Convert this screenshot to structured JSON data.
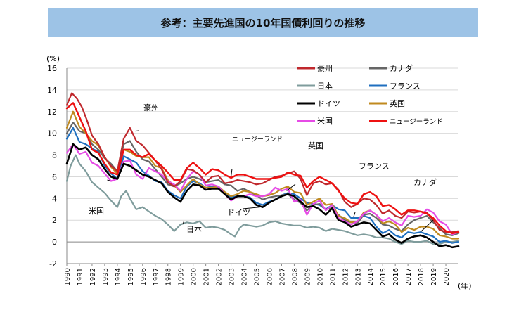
{
  "title": "参考：主要先進国の10年国債利回りの推移",
  "chart_data": {
    "type": "line",
    "title": "参考：主要先進国の10年国債利回りの推移",
    "ylabel": "(%)",
    "xlabel": "(年)",
    "ylim": [
      -2,
      16
    ],
    "xlim": [
      1990,
      2021.0
    ],
    "yticks": [
      "16",
      "14",
      "12",
      "10",
      "8",
      "6",
      "4",
      "2",
      "0",
      "-2"
    ],
    "xticks": [
      "1990",
      "1991",
      "1992",
      "1993",
      "1994",
      "1995",
      "1996",
      "1997",
      "1998",
      "1999",
      "2000",
      "2001",
      "2002",
      "2003",
      "2004",
      "2005",
      "2006",
      "2007",
      "2008",
      "2009",
      "2010",
      "2011",
      "2012",
      "2013",
      "2014",
      "2015",
      "2016",
      "2017",
      "2018",
      "2019",
      "2020"
    ],
    "grid": "horizontal",
    "legend_position": "top-right",
    "series": [
      {
        "name": "豪州",
        "color": "#c0282d",
        "width": 2.2,
        "x": [
          1990,
          1990.4,
          1990.8,
          1991.2,
          1991.6,
          1992,
          1992.5,
          1993,
          1993.5,
          1994,
          1994.5,
          1995,
          1995.5,
          1996,
          1996.5,
          1997,
          1997.5,
          1998,
          1998.5,
          1999,
          1999.5,
          2000,
          2000.5,
          2001,
          2001.5,
          2002,
          2002.5,
          2003,
          2003.5,
          2004,
          2004.5,
          2005,
          2005.5,
          2006,
          2006.5,
          2007,
          2007.5,
          2008,
          2008.5,
          2009,
          2009.5,
          2010,
          2010.5,
          2011,
          2011.5,
          2012,
          2012.5,
          2013,
          2013.5,
          2014,
          2014.5,
          2015,
          2015.5,
          2016,
          2016.5,
          2017,
          2017.5,
          2018,
          2018.5,
          2019,
          2019.5,
          2020,
          2020.5,
          2021
        ],
        "y": [
          12.6,
          13.7,
          13.2,
          12.4,
          11.2,
          9.8,
          9.0,
          7.8,
          7.0,
          6.5,
          9.5,
          10.5,
          9.3,
          8.9,
          8.2,
          7.5,
          6.7,
          5.5,
          5.1,
          5.6,
          6.7,
          6.6,
          6.2,
          5.5,
          6.0,
          6.1,
          5.4,
          5.5,
          5.7,
          5.6,
          5.5,
          5.3,
          5.4,
          5.7,
          6.0,
          6.1,
          6.3,
          6.5,
          5.8,
          4.3,
          5.4,
          5.6,
          5.3,
          5.4,
          4.8,
          3.7,
          3.2,
          3.5,
          4.0,
          3.9,
          3.4,
          2.6,
          2.9,
          2.4,
          2.2,
          2.8,
          2.7,
          2.8,
          2.7,
          2.0,
          1.1,
          0.9,
          0.9,
          1.0
        ]
      },
      {
        "name": "カナダ",
        "color": "#666666",
        "width": 2.2,
        "x": [
          1990,
          1990.5,
          1991,
          1991.5,
          1992,
          1992.5,
          1993,
          1993.5,
          1994,
          1994.5,
          1995,
          1995.5,
          1996,
          1996.5,
          1997,
          1997.5,
          1998,
          1998.5,
          1999,
          1999.5,
          2000,
          2000.5,
          2001,
          2001.5,
          2002,
          2002.5,
          2003,
          2003.5,
          2004,
          2004.5,
          2005,
          2005.5,
          2006,
          2006.5,
          2007,
          2007.5,
          2008,
          2008.5,
          2009,
          2009.5,
          2010,
          2010.5,
          2011,
          2011.5,
          2012,
          2012.5,
          2013,
          2013.5,
          2014,
          2014.5,
          2015,
          2015.5,
          2016,
          2016.5,
          2017,
          2017.5,
          2018,
          2018.5,
          2019,
          2019.5,
          2020,
          2020.5,
          2021
        ],
        "y": [
          10.0,
          11.0,
          10.2,
          10.0,
          9.0,
          8.5,
          7.7,
          7.2,
          6.5,
          9.0,
          9.3,
          8.3,
          7.6,
          7.4,
          6.7,
          6.0,
          5.3,
          5.1,
          5.4,
          5.8,
          6.0,
          5.8,
          5.5,
          5.6,
          5.7,
          5.3,
          5.2,
          4.7,
          4.9,
          4.6,
          4.3,
          3.9,
          4.1,
          4.2,
          4.3,
          4.4,
          3.9,
          3.6,
          2.9,
          3.4,
          3.5,
          3.0,
          3.1,
          2.5,
          2.0,
          1.8,
          1.7,
          2.5,
          2.6,
          2.2,
          1.6,
          1.5,
          1.2,
          1.0,
          1.6,
          2.0,
          2.2,
          2.4,
          1.8,
          1.3,
          0.7,
          0.6,
          0.8
        ]
      },
      {
        "name": "日本",
        "color": "#7f9c9c",
        "width": 2.2,
        "x": [
          1990,
          1990.3,
          1990.7,
          1991,
          1991.5,
          1992,
          1992.5,
          1993,
          1993.5,
          1994,
          1994.3,
          1994.7,
          1995,
          1995.5,
          1996,
          1996.5,
          1997,
          1997.5,
          1998,
          1998.5,
          1999,
          1999.5,
          2000,
          2000.5,
          2001,
          2001.5,
          2002,
          2002.5,
          2003,
          2003.3,
          2003.7,
          2004,
          2004.5,
          2005,
          2005.5,
          2006,
          2006.5,
          2007,
          2007.5,
          2008,
          2008.5,
          2009,
          2009.5,
          2010,
          2010.5,
          2011,
          2011.5,
          2012,
          2012.5,
          2013,
          2013.5,
          2014,
          2014.5,
          2015,
          2015.5,
          2016,
          2016.5,
          2017,
          2017.5,
          2018,
          2018.5,
          2019,
          2019.5,
          2020,
          2020.5,
          2021
        ],
        "y": [
          5.6,
          7.0,
          8.0,
          7.2,
          6.5,
          5.5,
          5.0,
          4.5,
          3.8,
          3.2,
          4.2,
          4.7,
          4.0,
          3.0,
          3.2,
          2.8,
          2.4,
          2.1,
          1.6,
          1.0,
          1.6,
          1.8,
          1.7,
          1.9,
          1.3,
          1.4,
          1.3,
          1.1,
          0.7,
          0.5,
          1.3,
          1.6,
          1.5,
          1.4,
          1.5,
          1.8,
          1.9,
          1.7,
          1.6,
          1.5,
          1.5,
          1.3,
          1.4,
          1.3,
          1.0,
          1.2,
          1.1,
          1.0,
          0.8,
          0.6,
          0.7,
          0.6,
          0.4,
          0.4,
          0.3,
          0.0,
          -0.2,
          0.1,
          0.0,
          0.0,
          0.1,
          -0.2,
          -0.2,
          0.0,
          0.0,
          0.1
        ]
      },
      {
        "name": "フランス",
        "color": "#1f6fbf",
        "width": 2.2,
        "x": [
          1990,
          1990.5,
          1991,
          1991.5,
          1992,
          1992.5,
          1993,
          1993.5,
          1994,
          1994.5,
          1995,
          1995.5,
          1996,
          1996.5,
          1997,
          1997.5,
          1998,
          1998.5,
          1999,
          1999.5,
          2000,
          2000.5,
          2001,
          2001.5,
          2002,
          2002.5,
          2003,
          2003.5,
          2004,
          2004.5,
          2005,
          2005.5,
          2006,
          2006.5,
          2007,
          2007.5,
          2008,
          2008.5,
          2009,
          2009.5,
          2010,
          2010.5,
          2011,
          2011.5,
          2012,
          2012.5,
          2013,
          2013.5,
          2014,
          2014.5,
          2015,
          2015.5,
          2016,
          2016.5,
          2017,
          2017.5,
          2018,
          2018.5,
          2019,
          2019.5,
          2020,
          2020.5,
          2021
        ],
        "y": [
          9.5,
          10.5,
          9.2,
          9.0,
          8.6,
          8.3,
          7.0,
          6.3,
          5.8,
          7.9,
          7.6,
          7.3,
          6.5,
          6.1,
          5.6,
          5.5,
          4.7,
          4.3,
          4.0,
          5.1,
          5.6,
          5.4,
          5.0,
          5.1,
          5.0,
          4.6,
          4.1,
          4.2,
          4.2,
          4.1,
          3.6,
          3.4,
          3.7,
          3.9,
          4.3,
          4.5,
          4.4,
          4.0,
          3.6,
          3.5,
          3.4,
          3.0,
          3.4,
          3.0,
          2.9,
          2.2,
          2.2,
          2.4,
          2.2,
          1.4,
          0.8,
          1.1,
          0.6,
          0.4,
          0.9,
          0.8,
          0.9,
          0.7,
          0.5,
          0.0,
          0.1,
          -0.1,
          0.0
        ]
      },
      {
        "name": "ドイツ",
        "color": "#000000",
        "width": 2.6,
        "x": [
          1990,
          1990.5,
          1991,
          1991.5,
          1992,
          1992.5,
          1993,
          1993.5,
          1994,
          1994.5,
          1995,
          1995.5,
          1996,
          1996.5,
          1997,
          1997.5,
          1998,
          1998.5,
          1999,
          1999.5,
          2000,
          2000.5,
          2001,
          2001.5,
          2002,
          2002.5,
          2003,
          2003.5,
          2004,
          2004.5,
          2005,
          2005.5,
          2006,
          2006.5,
          2007,
          2007.5,
          2008,
          2008.5,
          2009,
          2009.5,
          2010,
          2010.5,
          2011,
          2011.5,
          2012,
          2012.5,
          2013,
          2013.5,
          2014,
          2014.5,
          2015,
          2015.5,
          2016,
          2016.5,
          2017,
          2017.5,
          2018,
          2018.5,
          2019,
          2019.5,
          2020,
          2020.5,
          2021
        ],
        "y": [
          7.2,
          9.0,
          8.5,
          8.7,
          8.0,
          7.6,
          6.7,
          6.0,
          5.8,
          7.2,
          7.0,
          6.6,
          6.2,
          6.0,
          5.7,
          5.4,
          4.6,
          4.1,
          3.7,
          4.7,
          5.3,
          5.2,
          4.8,
          4.9,
          4.9,
          4.4,
          3.9,
          4.2,
          4.2,
          4.0,
          3.4,
          3.2,
          3.6,
          3.9,
          4.2,
          4.4,
          4.2,
          3.7,
          3.2,
          3.3,
          3.0,
          2.5,
          3.1,
          2.0,
          1.8,
          1.4,
          1.6,
          1.8,
          1.7,
          1.1,
          0.5,
          0.7,
          0.2,
          -0.1,
          0.3,
          0.5,
          0.6,
          0.4,
          0.0,
          -0.4,
          -0.3,
          -0.5,
          -0.4
        ]
      },
      {
        "name": "英国",
        "color": "#c08a1f",
        "width": 2.2,
        "x": [
          1990,
          1990.5,
          1991,
          1991.5,
          1992,
          1992.5,
          1993,
          1993.5,
          1994,
          1994.5,
          1995,
          1995.5,
          1996,
          1996.5,
          1997,
          1997.5,
          1998,
          1998.5,
          1999,
          1999.5,
          2000,
          2000.5,
          2001,
          2001.5,
          2002,
          2002.5,
          2003,
          2003.5,
          2004,
          2004.5,
          2005,
          2005.5,
          2006,
          2006.5,
          2007,
          2007.5,
          2008,
          2008.5,
          2009,
          2009.5,
          2010,
          2010.5,
          2011,
          2011.5,
          2012,
          2012.5,
          2013,
          2013.5,
          2014,
          2014.5,
          2015,
          2015.5,
          2016,
          2016.5,
          2017,
          2017.5,
          2018,
          2018.5,
          2019,
          2019.5,
          2020,
          2020.5,
          2021
        ],
        "y": [
          10.5,
          12.0,
          10.6,
          10.0,
          9.3,
          8.9,
          7.8,
          6.9,
          6.3,
          8.5,
          8.3,
          7.9,
          7.8,
          7.8,
          7.0,
          6.8,
          5.7,
          5.2,
          4.6,
          5.2,
          5.8,
          5.3,
          5.0,
          5.0,
          5.1,
          4.6,
          4.2,
          4.4,
          4.7,
          4.6,
          4.4,
          4.2,
          4.3,
          4.5,
          4.9,
          5.1,
          4.6,
          4.5,
          3.4,
          3.7,
          4.0,
          3.4,
          3.5,
          2.4,
          2.2,
          1.8,
          1.9,
          2.7,
          2.9,
          2.5,
          1.7,
          1.9,
          1.6,
          0.9,
          1.3,
          1.1,
          1.4,
          1.4,
          1.2,
          0.6,
          0.5,
          0.3,
          0.3
        ]
      },
      {
        "name": "米国",
        "color": "#e64be6",
        "width": 2.2,
        "x": [
          1990,
          1990.5,
          1991,
          1991.5,
          1992,
          1992.5,
          1993,
          1993.5,
          1994,
          1994.5,
          1995,
          1995.5,
          1996,
          1996.5,
          1997,
          1997.5,
          1998,
          1998.5,
          1999,
          1999.5,
          2000,
          2000.5,
          2001,
          2001.5,
          2002,
          2002.5,
          2003,
          2003.5,
          2004,
          2004.5,
          2005,
          2005.5,
          2006,
          2006.5,
          2007,
          2007.5,
          2008,
          2008.5,
          2009,
          2009.5,
          2010,
          2010.5,
          2011,
          2011.5,
          2012,
          2012.5,
          2013,
          2013.5,
          2014,
          2014.5,
          2015,
          2015.5,
          2016,
          2016.5,
          2017,
          2017.5,
          2018,
          2018.5,
          2019,
          2019.5,
          2020,
          2020.5,
          2021
        ],
        "y": [
          8.2,
          9.0,
          8.1,
          8.3,
          7.3,
          7.0,
          6.3,
          5.6,
          5.8,
          7.4,
          7.5,
          6.2,
          5.8,
          6.8,
          6.5,
          6.2,
          5.6,
          5.3,
          4.7,
          5.8,
          6.5,
          6.2,
          5.2,
          5.3,
          5.1,
          4.4,
          3.8,
          4.2,
          4.2,
          4.4,
          4.2,
          4.2,
          4.4,
          5.0,
          4.7,
          4.9,
          3.7,
          3.9,
          2.5,
          3.5,
          3.8,
          2.9,
          3.4,
          2.2,
          1.9,
          1.6,
          1.9,
          2.6,
          2.9,
          2.5,
          1.9,
          2.2,
          1.8,
          1.5,
          2.4,
          2.3,
          2.4,
          3.0,
          2.7,
          1.9,
          1.6,
          0.7,
          0.9
        ]
      },
      {
        "name": "ニュージーランド",
        "color": "#ee1111",
        "width": 2.4,
        "x": [
          1990,
          1990.5,
          1991,
          1991.5,
          1992,
          1992.5,
          1993,
          1993.5,
          1994,
          1994.5,
          1995,
          1995.5,
          1996,
          1996.5,
          1997,
          1997.5,
          1998,
          1998.5,
          1999,
          1999.5,
          2000,
          2000.5,
          2001,
          2001.5,
          2002,
          2002.5,
          2003,
          2003.5,
          2004,
          2004.5,
          2005,
          2005.5,
          2006,
          2006.5,
          2007,
          2007.5,
          2008,
          2008.5,
          2009,
          2009.5,
          2010,
          2010.5,
          2011,
          2011.5,
          2012,
          2012.5,
          2013,
          2013.5,
          2014,
          2014.5,
          2015,
          2015.5,
          2016,
          2016.5,
          2017,
          2017.5,
          2018,
          2018.5,
          2019,
          2019.5,
          2020,
          2020.5,
          2021
        ],
        "y": [
          12.3,
          12.8,
          11.5,
          10.2,
          8.5,
          8.2,
          7.2,
          6.4,
          6.2,
          8.5,
          8.5,
          8.0,
          7.8,
          8.1,
          7.5,
          7.0,
          6.4,
          5.7,
          5.7,
          6.8,
          7.3,
          6.8,
          6.2,
          6.7,
          6.6,
          6.2,
          5.9,
          6.2,
          6.2,
          6.0,
          5.8,
          5.8,
          5.8,
          5.9,
          6.0,
          6.4,
          6.2,
          6.1,
          5.0,
          5.6,
          6.0,
          5.7,
          5.4,
          4.7,
          4.0,
          3.6,
          3.5,
          4.4,
          4.6,
          4.2,
          3.3,
          3.4,
          3.0,
          2.5,
          2.9,
          2.9,
          2.8,
          2.6,
          2.2,
          1.5,
          1.0,
          0.8,
          0.9
        ]
      }
    ],
    "legend": [
      "豪州",
      "カナダ",
      "日本",
      "フランス",
      "ドイツ",
      "英国",
      "米国",
      "ニュージーランド"
    ],
    "annotations": [
      {
        "text": "豪州",
        "target": [
          1995.4,
          10.2
        ]
      },
      {
        "text": "ニュージーランド",
        "target": [
          2003.0,
          6.0
        ]
      },
      {
        "text": "英国",
        "target": [
          2007.4,
          4.7
        ]
      },
      {
        "text": "フランス",
        "target": [
          2012.7,
          2.3
        ]
      },
      {
        "text": "カナダ",
        "target": [
          2019.0,
          2.0
        ]
      },
      {
        "text": "米国",
        "target": [
          1993.2,
          5.7
        ]
      },
      {
        "text": "日本",
        "target": [
          1999.2,
          1.7
        ]
      },
      {
        "text": "ドイツ",
        "target": [
          2005.3,
          3.2
        ]
      }
    ]
  }
}
